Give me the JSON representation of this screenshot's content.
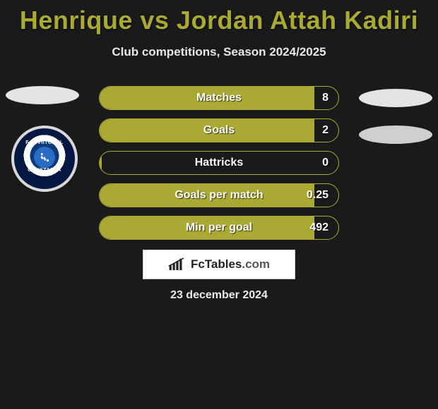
{
  "title": "Henrique vs Jordan Attah Kadiri",
  "subtitle": "Club competitions, Season 2024/2025",
  "club_badge": {
    "top_text": "F.C. VIITORUL",
    "year": "2009",
    "bottom_text": "CONSTANTA"
  },
  "stats": {
    "accent_color": "#aaa933",
    "text_color": "#ffffff",
    "rows": [
      {
        "label": "Matches",
        "value": "8",
        "fill_pct": 90
      },
      {
        "label": "Goals",
        "value": "2",
        "fill_pct": 90
      },
      {
        "label": "Hattricks",
        "value": "0",
        "fill_pct": 1
      },
      {
        "label": "Goals per match",
        "value": "0.25",
        "fill_pct": 90
      },
      {
        "label": "Min per goal",
        "value": "492",
        "fill_pct": 90
      }
    ]
  },
  "brand": {
    "name_bold": "FcTables",
    "name_light": ".com"
  },
  "date": "23 december 2024",
  "colors": {
    "background": "#1a1a1a",
    "title": "#aaa933",
    "text": "#e8e8e8"
  }
}
